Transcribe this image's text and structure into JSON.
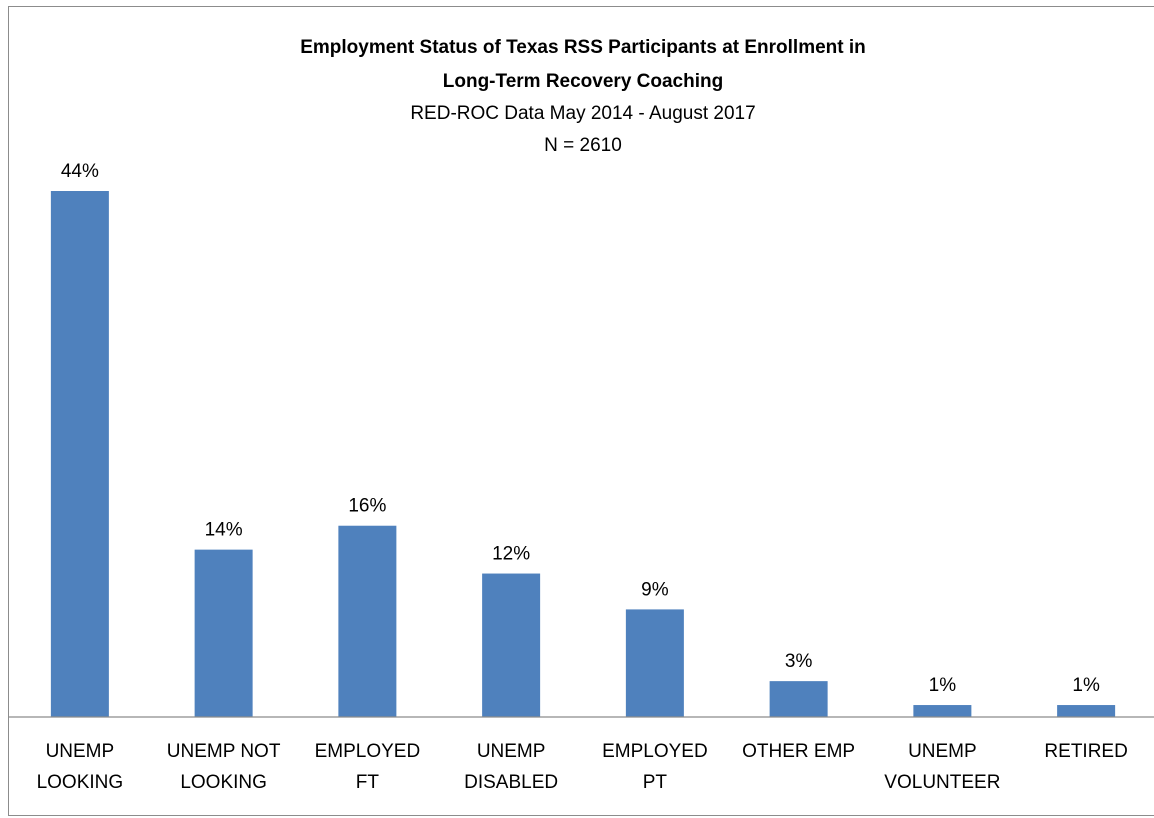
{
  "chart_data": {
    "type": "bar",
    "title": [
      "Employment Status of  Texas RSS Participants at Enrollment in",
      "Long-Term Recovery Coaching"
    ],
    "subtitle": [
      "RED-ROC Data May 2014 - August 2017",
      "N = 2610"
    ],
    "categories": [
      [
        "UNEMP",
        "LOOKING"
      ],
      [
        "UNEMP NOT",
        "LOOKING"
      ],
      [
        "EMPLOYED",
        "FT"
      ],
      [
        "UNEMP",
        "DISABLED"
      ],
      [
        "EMPLOYED",
        "PT"
      ],
      [
        "OTHER EMP"
      ],
      [
        "UNEMP",
        "VOLUNTEER"
      ],
      [
        "RETIRED"
      ]
    ],
    "values": [
      44,
      14,
      16,
      12,
      9,
      3,
      1,
      1
    ],
    "data_labels": [
      "44%",
      "14%",
      "16%",
      "12%",
      "9%",
      "3%",
      "1%",
      "1%"
    ],
    "unit": "%",
    "bar_color": "#4f81bd",
    "grid": false,
    "legend": "none"
  }
}
